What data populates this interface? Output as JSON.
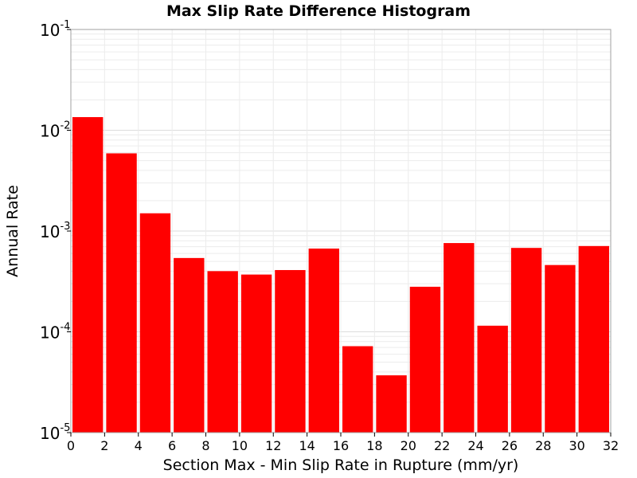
{
  "chart_data": {
    "type": "bar",
    "title": "Max Slip Rate Difference Histogram",
    "xlabel": "Section Max - Min Slip Rate in Rupture (mm/yr)",
    "ylabel": "Annual Rate",
    "xlim": [
      0,
      32
    ],
    "ylim": [
      1e-05,
      0.1
    ],
    "yscale": "log",
    "bin_width": 2,
    "x_ticks": [
      "0",
      "2",
      "4",
      "6",
      "8",
      "10",
      "12",
      "14",
      "16",
      "18",
      "20",
      "22",
      "24",
      "26",
      "28",
      "30",
      "32"
    ],
    "y_ticks": [
      {
        "base": "10",
        "exp": "-5"
      },
      {
        "base": "10",
        "exp": "-4"
      },
      {
        "base": "10",
        "exp": "-3"
      },
      {
        "base": "10",
        "exp": "-2"
      },
      {
        "base": "10",
        "exp": "-1"
      }
    ],
    "grid": true,
    "bar_color": "#ff0000",
    "bins": [
      {
        "start": 0,
        "value": 0.0135
      },
      {
        "start": 2,
        "value": 0.0059
      },
      {
        "start": 4,
        "value": 0.0015
      },
      {
        "start": 6,
        "value": 0.00054
      },
      {
        "start": 8,
        "value": 0.0004
      },
      {
        "start": 10,
        "value": 0.00037
      },
      {
        "start": 12,
        "value": 0.00041
      },
      {
        "start": 14,
        "value": 0.00067
      },
      {
        "start": 16,
        "value": 7.2e-05
      },
      {
        "start": 18,
        "value": 3.7e-05
      },
      {
        "start": 20,
        "value": 0.00028
      },
      {
        "start": 22,
        "value": 0.00076
      },
      {
        "start": 24,
        "value": 0.000115
      },
      {
        "start": 26,
        "value": 0.00068
      },
      {
        "start": 28,
        "value": 0.00046
      },
      {
        "start": 30,
        "value": 0.00071
      }
    ]
  }
}
